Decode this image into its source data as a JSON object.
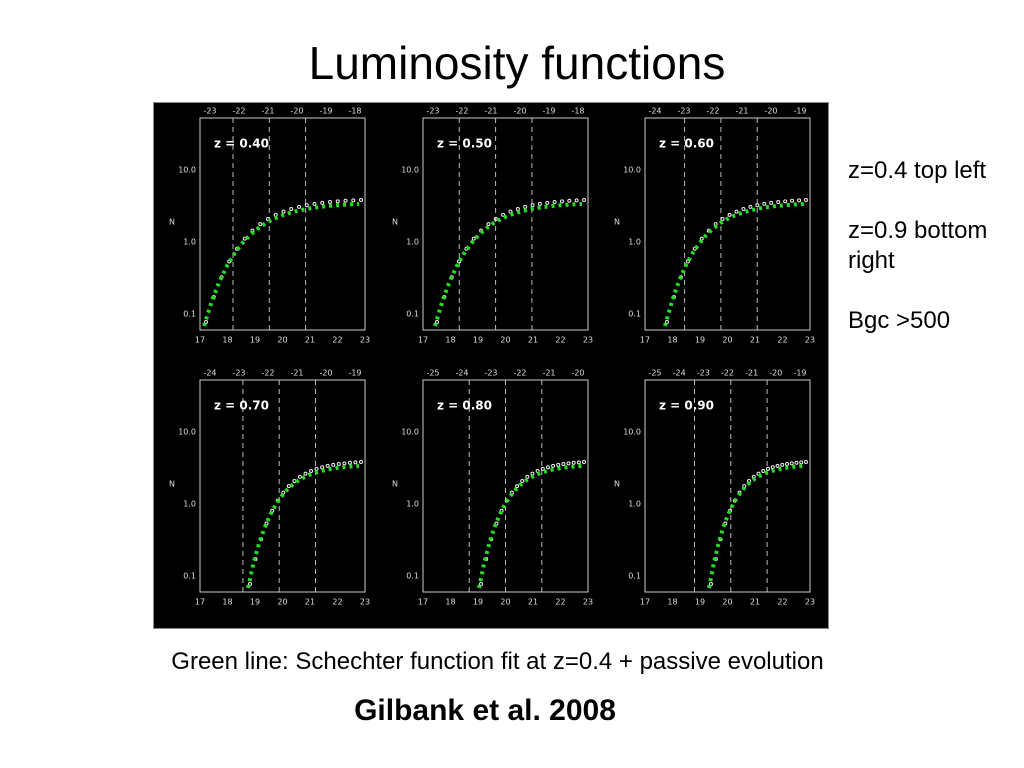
{
  "title": "Luminosity functions",
  "figure": {
    "y_axis_label": "N",
    "panels": [
      {
        "label": "z = 0.40",
        "top_ticks": [
          "-23",
          "-22",
          "-21",
          "-20",
          "-19",
          "-18"
        ],
        "bottom_ticks": [
          "17",
          "18",
          "19",
          "20",
          "21",
          "22",
          "23"
        ],
        "left_ticks": [
          "10.0",
          "1.0",
          "0.1"
        ]
      },
      {
        "label": "z = 0.50",
        "top_ticks": [
          "-23",
          "-22",
          "-21",
          "-20",
          "-19",
          "-18"
        ],
        "bottom_ticks": [
          "17",
          "18",
          "19",
          "20",
          "21",
          "22",
          "23"
        ],
        "left_ticks": [
          "10.0",
          "1.0",
          "0.1"
        ]
      },
      {
        "label": "z = 0.60",
        "top_ticks": [
          "-24",
          "-23",
          "-22",
          "-21",
          "-20",
          "-19"
        ],
        "bottom_ticks": [
          "17",
          "18",
          "19",
          "20",
          "21",
          "22",
          "23"
        ],
        "left_ticks": [
          "10.0",
          "1.0",
          "0.1"
        ]
      },
      {
        "label": "z = 0.70",
        "top_ticks": [
          "-24",
          "-23",
          "-22",
          "-21",
          "-20",
          "-19"
        ],
        "bottom_ticks": [
          "17",
          "18",
          "19",
          "20",
          "21",
          "22",
          "23"
        ],
        "left_ticks": [
          "10.0",
          "1.0",
          "0.1"
        ]
      },
      {
        "label": "z = 0.80",
        "top_ticks": [
          "-25",
          "-24",
          "-23",
          "-22",
          "-21",
          "-20"
        ],
        "bottom_ticks": [
          "17",
          "18",
          "19",
          "20",
          "21",
          "22",
          "23"
        ],
        "left_ticks": [
          "10.0",
          "1.0",
          "0.1"
        ]
      },
      {
        "label": "z = 0.90",
        "top_ticks": [
          "-25",
          "-24",
          "-23",
          "-22",
          "-21",
          "-20",
          "-19"
        ],
        "bottom_ticks": [
          "17",
          "18",
          "19",
          "20",
          "21",
          "22",
          "23"
        ],
        "left_ticks": [
          "10.0",
          "1.0",
          "0.1"
        ]
      }
    ]
  },
  "side_notes": [
    "z=0.4 top left",
    "z=0.9 bottom right",
    "Bgc >500"
  ],
  "caption": "Green line:  Schechter function fit at z=0.4 + passive evolution",
  "citation": "Gilbank et al. 2008"
}
